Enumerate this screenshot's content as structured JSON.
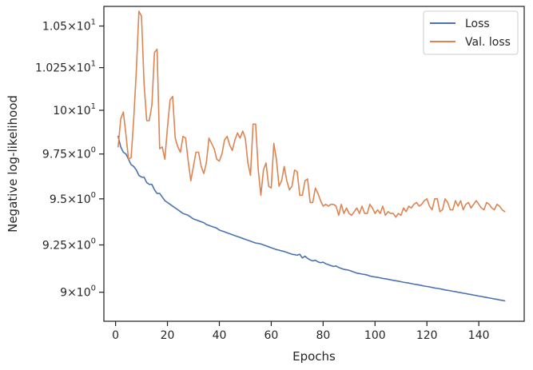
{
  "chart_data": {
    "type": "line",
    "xlabel": "Epochs",
    "ylabel": "Negative log-likelihood",
    "x_ticks": [
      0,
      20,
      40,
      60,
      80,
      100,
      120,
      140
    ],
    "y_scale": "log",
    "xlim": [
      -4.5,
      157.5
    ],
    "ylim": [
      8.85,
      10.62
    ],
    "y_ticks": [
      {
        "value": 9.0,
        "base": "9",
        "exp": "0"
      },
      {
        "value": 9.25,
        "base": "9.25",
        "exp": "0"
      },
      {
        "value": 9.5,
        "base": "9.5",
        "exp": "0"
      },
      {
        "value": 9.75,
        "base": "9.75",
        "exp": "0"
      },
      {
        "value": 10.0,
        "base": "10",
        "exp": "1"
      },
      {
        "value": 10.25,
        "base": "1.025",
        "exp": "1"
      },
      {
        "value": 10.5,
        "base": "1.05",
        "exp": "1"
      }
    ],
    "tick_multiplier": "×10",
    "grid": false,
    "legend_position": "top-right",
    "series": [
      {
        "name": "Loss",
        "color": "#4c72b0",
        "x": [
          1,
          2,
          3,
          4,
          5,
          6,
          7,
          8,
          9,
          10,
          11,
          12,
          13,
          14,
          15,
          16,
          17,
          18,
          19,
          20,
          21,
          22,
          23,
          24,
          25,
          26,
          27,
          28,
          29,
          30,
          31,
          32,
          33,
          34,
          35,
          36,
          37,
          38,
          39,
          40,
          41,
          42,
          43,
          44,
          45,
          46,
          47,
          48,
          49,
          50,
          51,
          52,
          53,
          54,
          55,
          56,
          57,
          58,
          59,
          60,
          61,
          62,
          63,
          64,
          65,
          66,
          67,
          68,
          69,
          70,
          71,
          72,
          73,
          74,
          75,
          76,
          77,
          78,
          79,
          80,
          81,
          82,
          83,
          84,
          85,
          86,
          87,
          88,
          89,
          90,
          91,
          92,
          93,
          94,
          95,
          96,
          97,
          98,
          99,
          100,
          101,
          102,
          103,
          104,
          105,
          106,
          107,
          108,
          109,
          110,
          111,
          112,
          113,
          114,
          115,
          116,
          117,
          118,
          119,
          120,
          121,
          122,
          123,
          124,
          125,
          126,
          127,
          128,
          129,
          130,
          131,
          132,
          133,
          134,
          135,
          136,
          137,
          138,
          139,
          140,
          141,
          142,
          143,
          144,
          145,
          146,
          147,
          148,
          149,
          150
        ],
        "y": [
          9.85,
          9.79,
          9.76,
          9.75,
          9.72,
          9.69,
          9.68,
          9.66,
          9.63,
          9.62,
          9.62,
          9.59,
          9.58,
          9.58,
          9.55,
          9.53,
          9.53,
          9.51,
          9.49,
          9.48,
          9.47,
          9.46,
          9.45,
          9.44,
          9.43,
          9.42,
          9.415,
          9.41,
          9.4,
          9.39,
          9.385,
          9.38,
          9.375,
          9.37,
          9.36,
          9.355,
          9.35,
          9.345,
          9.34,
          9.33,
          9.325,
          9.32,
          9.315,
          9.31,
          9.305,
          9.3,
          9.295,
          9.29,
          9.285,
          9.28,
          9.275,
          9.27,
          9.265,
          9.26,
          9.258,
          9.255,
          9.25,
          9.245,
          9.24,
          9.235,
          9.23,
          9.225,
          9.222,
          9.218,
          9.215,
          9.21,
          9.205,
          9.2,
          9.198,
          9.195,
          9.2,
          9.18,
          9.19,
          9.178,
          9.17,
          9.165,
          9.168,
          9.16,
          9.155,
          9.158,
          9.15,
          9.145,
          9.14,
          9.135,
          9.138,
          9.13,
          9.125,
          9.12,
          9.118,
          9.115,
          9.11,
          9.105,
          9.1,
          9.098,
          9.095,
          9.093,
          9.09,
          9.085,
          9.082,
          9.08,
          9.078,
          9.075,
          9.072,
          9.07,
          9.068,
          9.065,
          9.062,
          9.06,
          9.058,
          9.055,
          9.052,
          9.05,
          9.048,
          9.045,
          9.042,
          9.04,
          9.038,
          9.035,
          9.032,
          9.03,
          9.028,
          9.025,
          9.022,
          9.02,
          9.018,
          9.015,
          9.012,
          9.01,
          9.008,
          9.005,
          9.003,
          9.0,
          8.998,
          8.995,
          8.993,
          8.99,
          8.988,
          8.985,
          8.983,
          8.98,
          8.978,
          8.975,
          8.973,
          8.97,
          8.968,
          8.965,
          8.963,
          8.96,
          8.958,
          8.955
        ]
      },
      {
        "name": "Val. loss",
        "color": "#dd8452",
        "x": [
          1,
          2,
          3,
          4,
          5,
          6,
          7,
          8,
          9,
          10,
          11,
          12,
          13,
          14,
          15,
          16,
          17,
          18,
          19,
          20,
          21,
          22,
          23,
          24,
          25,
          26,
          27,
          28,
          29,
          30,
          31,
          32,
          33,
          34,
          35,
          36,
          37,
          38,
          39,
          40,
          41,
          42,
          43,
          44,
          45,
          46,
          47,
          48,
          49,
          50,
          51,
          52,
          53,
          54,
          55,
          56,
          57,
          58,
          59,
          60,
          61,
          62,
          63,
          64,
          65,
          66,
          67,
          68,
          69,
          70,
          71,
          72,
          73,
          74,
          75,
          76,
          77,
          78,
          79,
          80,
          81,
          82,
          83,
          84,
          85,
          86,
          87,
          88,
          89,
          90,
          91,
          92,
          93,
          94,
          95,
          96,
          97,
          98,
          99,
          100,
          101,
          102,
          103,
          104,
          105,
          106,
          107,
          108,
          109,
          110,
          111,
          112,
          113,
          114,
          115,
          116,
          117,
          118,
          119,
          120,
          121,
          122,
          123,
          124,
          125,
          126,
          127,
          128,
          129,
          130,
          131,
          132,
          133,
          134,
          135,
          136,
          137,
          138,
          139,
          140,
          141,
          142,
          143,
          144,
          145,
          146,
          147,
          148,
          149,
          150
        ],
        "y": [
          9.79,
          9.95,
          9.99,
          9.86,
          9.72,
          9.73,
          9.95,
          10.23,
          10.59,
          10.56,
          10.15,
          9.94,
          9.94,
          10.03,
          10.34,
          10.36,
          9.78,
          9.79,
          9.72,
          9.9,
          10.06,
          10.08,
          9.84,
          9.79,
          9.76,
          9.85,
          9.84,
          9.71,
          9.6,
          9.68,
          9.76,
          9.76,
          9.68,
          9.64,
          9.7,
          9.84,
          9.81,
          9.78,
          9.72,
          9.71,
          9.75,
          9.83,
          9.85,
          9.8,
          9.77,
          9.83,
          9.87,
          9.84,
          9.88,
          9.84,
          9.7,
          9.63,
          9.92,
          9.92,
          9.66,
          9.52,
          9.66,
          9.7,
          9.57,
          9.56,
          9.81,
          9.72,
          9.57,
          9.6,
          9.68,
          9.6,
          9.55,
          9.57,
          9.66,
          9.65,
          9.52,
          9.52,
          9.6,
          9.61,
          9.48,
          9.48,
          9.56,
          9.53,
          9.49,
          9.46,
          9.47,
          9.46,
          9.47,
          9.47,
          9.46,
          9.41,
          9.47,
          9.42,
          9.45,
          9.42,
          9.41,
          9.43,
          9.45,
          9.42,
          9.46,
          9.42,
          9.42,
          9.47,
          9.45,
          9.42,
          9.44,
          9.42,
          9.46,
          9.41,
          9.43,
          9.42,
          9.42,
          9.4,
          9.42,
          9.41,
          9.45,
          9.43,
          9.46,
          9.45,
          9.47,
          9.48,
          9.46,
          9.47,
          9.49,
          9.5,
          9.46,
          9.44,
          9.5,
          9.5,
          9.43,
          9.44,
          9.5,
          9.48,
          9.44,
          9.44,
          9.49,
          9.46,
          9.49,
          9.44,
          9.47,
          9.48,
          9.45,
          9.47,
          9.49,
          9.47,
          9.45,
          9.44,
          9.48,
          9.47,
          9.45,
          9.44,
          9.47,
          9.46,
          9.44,
          9.43
        ]
      }
    ]
  }
}
